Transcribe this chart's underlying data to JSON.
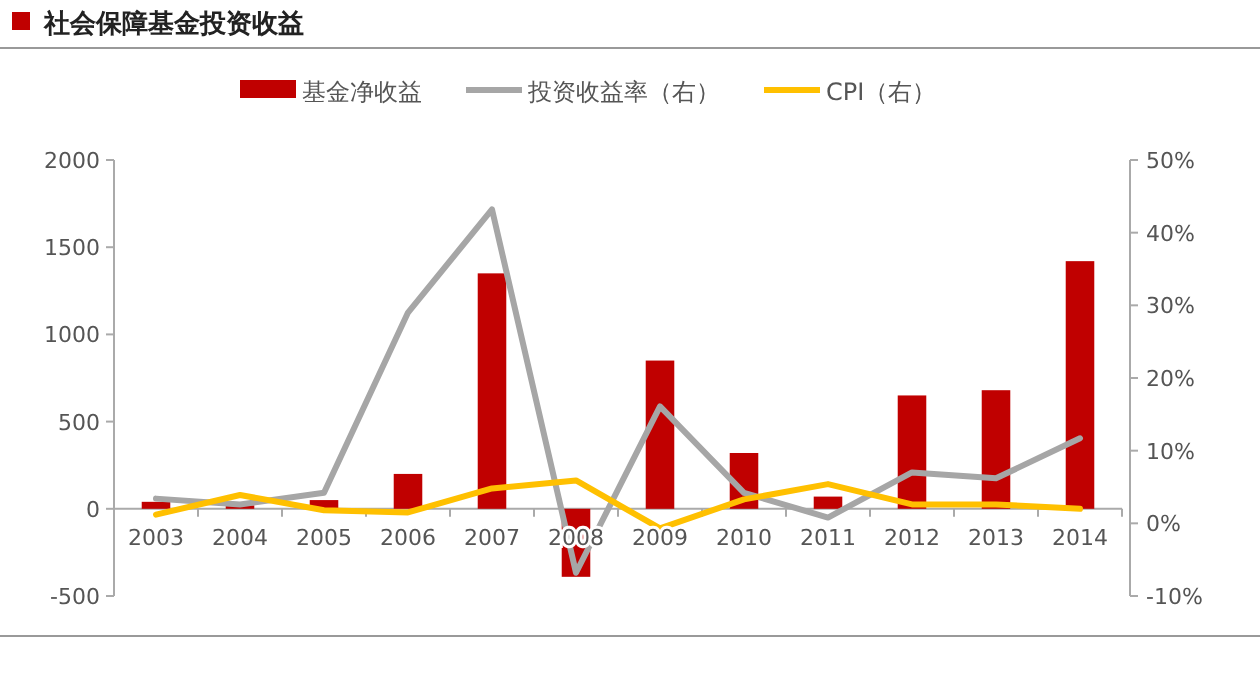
{
  "chart_data": {
    "type": "bar",
    "title": "社会保障基金投资收益",
    "categories": [
      "2003",
      "2004",
      "2005",
      "2006",
      "2007",
      "2008",
      "2009",
      "2010",
      "2011",
      "2012",
      "2013",
      "2014"
    ],
    "series": [
      {
        "name": "基金净收益",
        "color": "#c00000",
        "values": [
          40,
          20,
          50,
          200,
          1350,
          -390,
          850,
          320,
          70,
          650,
          680,
          1420
        ]
      },
      {
        "name": "投资收益率（右）",
        "type": "line",
        "axis": "y2",
        "color": "#a6a6a6",
        "values": [
          3.4,
          2.6,
          4.2,
          29,
          43.2,
          -6.8,
          16.1,
          4.2,
          0.8,
          7,
          6.2,
          11.7
        ]
      },
      {
        "name": "CPI（右）",
        "type": "line",
        "axis": "y2",
        "color": "#ffc000",
        "values": [
          1.2,
          3.9,
          1.8,
          1.5,
          4.8,
          5.9,
          -0.7,
          3.3,
          5.4,
          2.6,
          2.6,
          2.0
        ]
      }
    ],
    "ylim": [
      -500,
      2000
    ],
    "yticks": [
      -500,
      0,
      500,
      1000,
      1500,
      2000
    ],
    "y2lim": [
      -10,
      50
    ],
    "y2ticks": [
      {
        "value": -10,
        "label": "-10%"
      },
      {
        "value": 0,
        "label": "0%"
      },
      {
        "value": 10,
        "label": "10%"
      },
      {
        "value": 20,
        "label": "20%"
      },
      {
        "value": 30,
        "label": "30%"
      },
      {
        "value": 40,
        "label": "40%"
      },
      {
        "value": 50,
        "label": "50%"
      }
    ],
    "legend": "top",
    "grid": false,
    "line_style": "solid",
    "marker": "none"
  }
}
